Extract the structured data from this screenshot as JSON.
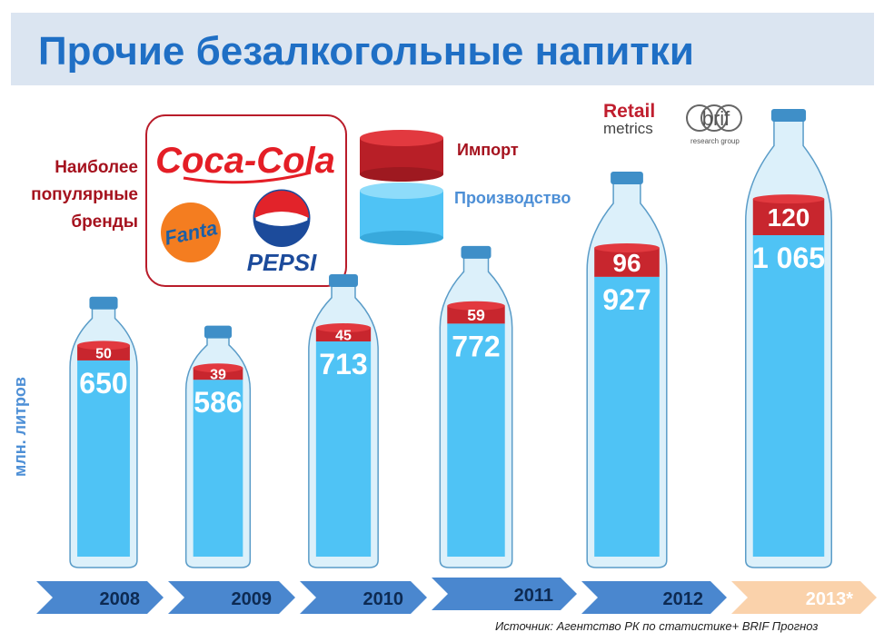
{
  "title": "Прочие безалкогольные напитки",
  "brands_label": "Наиболее популярные бренды",
  "brands": [
    "Coca-Cola",
    "Fanta",
    "PEPSI"
  ],
  "legend": {
    "import": "Импорт",
    "production": "Производство"
  },
  "unit_label": "млн. литров",
  "logos": {
    "retail_line1": "Retail",
    "retail_line2": "metrics",
    "brif_name": "brif",
    "brif_sub": "research group"
  },
  "source": "Источник: Агентство РК по статистике+ BRIF Прогноз",
  "colors": {
    "import": "#c8262e",
    "production": "#4fc3f5",
    "arrow": "#4a87cf",
    "arrow_forecast": "#fad2ab",
    "title": "#1f6fc5",
    "title_bg": "#dbe5f1"
  },
  "chart_data": {
    "type": "bar",
    "categories": [
      "2008",
      "2009",
      "2010",
      "2011",
      "2012",
      "2013*"
    ],
    "series": [
      {
        "name": "Импорт",
        "values": [
          50,
          39,
          45,
          59,
          96,
          120
        ],
        "labels": [
          "50",
          "39",
          "45",
          "59",
          "96",
          "120"
        ]
      },
      {
        "name": "Производство",
        "values": [
          650,
          586,
          713,
          772,
          927,
          1065
        ],
        "labels": [
          "650",
          "586",
          "713",
          "772",
          "927",
          "1 065"
        ]
      }
    ],
    "forecast_category": "2013*",
    "ylabel": "млн. литров"
  }
}
